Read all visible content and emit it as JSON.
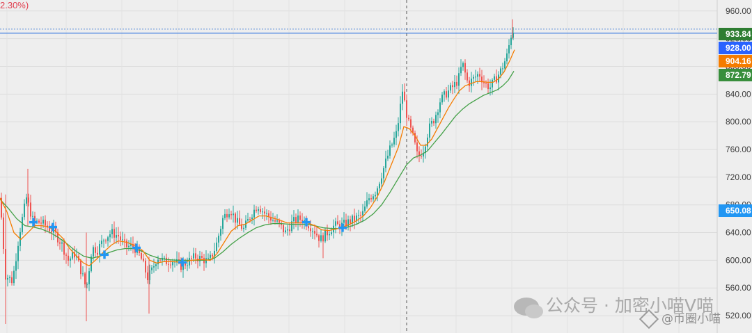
{
  "header": {
    "change_text": "2.30%)"
  },
  "watermark": {
    "line1": "公众号 · 加密小喵V喵",
    "line2": "@币圈小喵"
  },
  "chart_data": {
    "type": "candlestick",
    "y_axis_ticks": [
      520,
      560,
      600,
      640,
      680,
      720,
      760,
      800,
      840,
      880,
      920,
      960
    ],
    "y_axis_tick_labels": [
      "520.00",
      "560.00",
      "600.00",
      "640.00",
      "680.00",
      "720.00",
      "760.00",
      "800.00",
      "840.00",
      "880.00",
      "920.00",
      "960.00"
    ],
    "ylim": [
      495,
      968
    ],
    "grid": true,
    "colors": {
      "up": "#26a69a",
      "down": "#ef5350",
      "ma_fast": "#f57c00",
      "ma_slow": "#43a047",
      "marker": "#2196f3",
      "hline": "#3a7be0"
    },
    "price_tags": [
      {
        "label": "933.84",
        "value": 933.84,
        "color": "#2e7d32"
      },
      {
        "label": "928.00",
        "value": 928.0,
        "color": "#2962ff"
      },
      {
        "label": "904.16",
        "value": 904.16,
        "color": "#f57c00"
      },
      {
        "label": "872.79",
        "value": 872.79,
        "color": "#388e3c"
      },
      {
        "label": "650.08",
        "value": 650.08,
        "color": "#2196f3"
      }
    ],
    "horizontal_lines": [
      {
        "value": 928.0
      },
      {
        "value": 933.84
      }
    ],
    "close_path": [
      [
        0,
        690
      ],
      [
        8,
        578
      ],
      [
        18,
        570
      ],
      [
        28,
        640
      ],
      [
        38,
        690
      ],
      [
        48,
        655
      ],
      [
        58,
        655
      ],
      [
        68,
        648
      ],
      [
        78,
        640
      ],
      [
        88,
        625
      ],
      [
        98,
        600
      ],
      [
        108,
        610
      ],
      [
        118,
        580
      ],
      [
        124,
        558
      ],
      [
        132,
        618
      ],
      [
        140,
        615
      ],
      [
        150,
        632
      ],
      [
        160,
        640
      ],
      [
        170,
        635
      ],
      [
        180,
        620
      ],
      [
        192,
        620
      ],
      [
        202,
        605
      ],
      [
        212,
        575
      ],
      [
        218,
        585
      ],
      [
        226,
        605
      ],
      [
        236,
        598
      ],
      [
        248,
        600
      ],
      [
        260,
        592
      ],
      [
        270,
        598
      ],
      [
        280,
        605
      ],
      [
        290,
        602
      ],
      [
        300,
        598
      ],
      [
        310,
        620
      ],
      [
        320,
        660
      ],
      [
        330,
        675
      ],
      [
        340,
        655
      ],
      [
        350,
        645
      ],
      [
        360,
        665
      ],
      [
        370,
        680
      ],
      [
        380,
        668
      ],
      [
        390,
        660
      ],
      [
        400,
        652
      ],
      [
        410,
        640
      ],
      [
        420,
        655
      ],
      [
        430,
        660
      ],
      [
        440,
        655
      ],
      [
        450,
        645
      ],
      [
        460,
        630
      ],
      [
        470,
        640
      ],
      [
        480,
        650
      ],
      [
        490,
        650
      ],
      [
        500,
        655
      ],
      [
        510,
        660
      ],
      [
        520,
        665
      ],
      [
        530,
        690
      ],
      [
        540,
        700
      ],
      [
        550,
        730
      ],
      [
        560,
        760
      ],
      [
        570,
        785
      ],
      [
        578,
        845
      ],
      [
        586,
        800
      ],
      [
        594,
        775
      ],
      [
        600,
        748
      ],
      [
        608,
        760
      ],
      [
        616,
        790
      ],
      [
        624,
        805
      ],
      [
        632,
        830
      ],
      [
        640,
        840
      ],
      [
        650,
        850
      ],
      [
        658,
        860
      ],
      [
        664,
        885
      ],
      [
        672,
        855
      ],
      [
        680,
        862
      ],
      [
        688,
        870
      ],
      [
        696,
        855
      ],
      [
        704,
        850
      ],
      [
        712,
        862
      ],
      [
        720,
        875
      ],
      [
        728,
        895
      ],
      [
        734,
        925
      ],
      [
        738,
        934
      ]
    ],
    "ma_fast": [
      [
        0,
        690
      ],
      [
        10,
        670
      ],
      [
        20,
        640
      ],
      [
        30,
        630
      ],
      [
        40,
        640
      ],
      [
        50,
        650
      ],
      [
        60,
        650
      ],
      [
        70,
        648
      ],
      [
        80,
        642
      ],
      [
        90,
        632
      ],
      [
        100,
        617
      ],
      [
        110,
        606
      ],
      [
        120,
        596
      ],
      [
        128,
        592
      ],
      [
        138,
        601
      ],
      [
        148,
        611
      ],
      [
        160,
        622
      ],
      [
        170,
        628
      ],
      [
        182,
        626
      ],
      [
        195,
        621
      ],
      [
        205,
        614
      ],
      [
        215,
        600
      ],
      [
        225,
        596
      ],
      [
        235,
        598
      ],
      [
        248,
        598
      ],
      [
        262,
        597
      ],
      [
        275,
        600
      ],
      [
        290,
        601
      ],
      [
        302,
        600
      ],
      [
        312,
        610
      ],
      [
        322,
        626
      ],
      [
        332,
        642
      ],
      [
        342,
        650
      ],
      [
        352,
        652
      ],
      [
        362,
        658
      ],
      [
        372,
        664
      ],
      [
        382,
        664
      ],
      [
        392,
        661
      ],
      [
        402,
        658
      ],
      [
        412,
        654
      ],
      [
        422,
        654
      ],
      [
        432,
        654
      ],
      [
        442,
        654
      ],
      [
        452,
        650
      ],
      [
        462,
        644
      ],
      [
        472,
        643
      ],
      [
        482,
        645
      ],
      [
        492,
        648
      ],
      [
        502,
        652
      ],
      [
        512,
        657
      ],
      [
        522,
        664
      ],
      [
        532,
        676
      ],
      [
        542,
        692
      ],
      [
        552,
        713
      ],
      [
        562,
        738
      ],
      [
        572,
        763
      ],
      [
        580,
        793
      ],
      [
        588,
        790
      ],
      [
        596,
        780
      ],
      [
        604,
        766
      ],
      [
        612,
        766
      ],
      [
        620,
        775
      ],
      [
        628,
        790
      ],
      [
        636,
        805
      ],
      [
        644,
        820
      ],
      [
        652,
        833
      ],
      [
        660,
        845
      ],
      [
        668,
        852
      ],
      [
        676,
        855
      ],
      [
        684,
        858
      ],
      [
        692,
        858
      ],
      [
        700,
        857
      ],
      [
        708,
        857
      ],
      [
        716,
        862
      ],
      [
        724,
        872
      ],
      [
        732,
        888
      ],
      [
        739,
        904
      ]
    ],
    "ma_slow": [
      [
        0,
        688
      ],
      [
        12,
        675
      ],
      [
        24,
        660
      ],
      [
        36,
        650
      ],
      [
        48,
        648
      ],
      [
        60,
        645
      ],
      [
        72,
        640
      ],
      [
        84,
        633
      ],
      [
        96,
        624
      ],
      [
        108,
        614
      ],
      [
        120,
        606
      ],
      [
        132,
        603
      ],
      [
        144,
        606
      ],
      [
        156,
        611
      ],
      [
        168,
        615
      ],
      [
        180,
        617
      ],
      [
        192,
        617
      ],
      [
        204,
        613
      ],
      [
        216,
        607
      ],
      [
        228,
        603
      ],
      [
        240,
        601
      ],
      [
        254,
        600
      ],
      [
        268,
        600
      ],
      [
        282,
        600
      ],
      [
        296,
        600
      ],
      [
        308,
        603
      ],
      [
        320,
        612
      ],
      [
        332,
        623
      ],
      [
        344,
        632
      ],
      [
        356,
        640
      ],
      [
        368,
        647
      ],
      [
        380,
        651
      ],
      [
        392,
        653
      ],
      [
        404,
        653
      ],
      [
        416,
        652
      ],
      [
        428,
        652
      ],
      [
        440,
        652
      ],
      [
        452,
        650
      ],
      [
        464,
        647
      ],
      [
        476,
        646
      ],
      [
        488,
        646
      ],
      [
        500,
        648
      ],
      [
        512,
        652
      ],
      [
        524,
        658
      ],
      [
        536,
        667
      ],
      [
        548,
        680
      ],
      [
        560,
        698
      ],
      [
        572,
        718
      ],
      [
        584,
        738
      ],
      [
        594,
        748
      ],
      [
        604,
        752
      ],
      [
        614,
        758
      ],
      [
        624,
        770
      ],
      [
        634,
        782
      ],
      [
        644,
        795
      ],
      [
        654,
        808
      ],
      [
        664,
        818
      ],
      [
        674,
        826
      ],
      [
        684,
        832
      ],
      [
        694,
        838
      ],
      [
        704,
        842
      ],
      [
        714,
        846
      ],
      [
        722,
        852
      ],
      [
        730,
        860
      ],
      [
        738,
        873
      ]
    ],
    "markers": [
      [
        48,
        655
      ],
      [
        76,
        648
      ],
      [
        150,
        608
      ],
      [
        196,
        618
      ],
      [
        262,
        597
      ],
      [
        440,
        655
      ],
      [
        492,
        647
      ]
    ]
  }
}
